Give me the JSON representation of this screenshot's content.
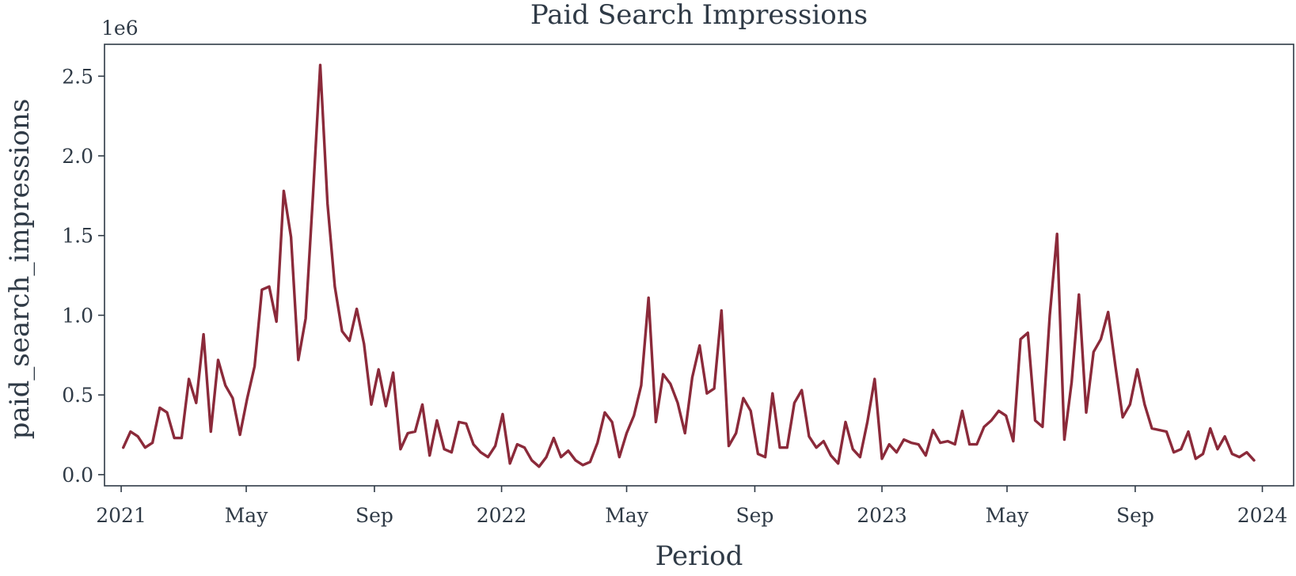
{
  "chart_data": {
    "type": "line",
    "title": "Paid Search Impressions",
    "xlabel": "Period",
    "ylabel": "paid_search_impressions",
    "y_offset_label": "1e6",
    "y_multiplier": 1000000,
    "ylim": [
      -0.07,
      2.7
    ],
    "xlim": [
      "2020-12-16",
      "2024-01-31"
    ],
    "grid": false,
    "line_color": "#8b2a3a",
    "y_ticks": [
      {
        "value": 0.0,
        "label": "0.0"
      },
      {
        "value": 0.5,
        "label": "0.5"
      },
      {
        "value": 1.0,
        "label": "1.0"
      },
      {
        "value": 1.5,
        "label": "1.5"
      },
      {
        "value": 2.0,
        "label": "2.0"
      },
      {
        "value": 2.5,
        "label": "2.5"
      }
    ],
    "x_ticks": [
      {
        "date": "2021-01-01",
        "label": "2021"
      },
      {
        "date": "2021-05-01",
        "label": "May"
      },
      {
        "date": "2021-09-01",
        "label": "Sep"
      },
      {
        "date": "2022-01-01",
        "label": "2022"
      },
      {
        "date": "2022-05-01",
        "label": "May"
      },
      {
        "date": "2022-09-01",
        "label": "Sep"
      },
      {
        "date": "2023-01-01",
        "label": "2023"
      },
      {
        "date": "2023-05-01",
        "label": "May"
      },
      {
        "date": "2023-09-01",
        "label": "Sep"
      },
      {
        "date": "2024-01-01",
        "label": "2024"
      }
    ],
    "series": [
      {
        "x": [
          "2021-01-03",
          "2021-01-10",
          "2021-01-17",
          "2021-01-24",
          "2021-01-31",
          "2021-02-07",
          "2021-02-14",
          "2021-02-21",
          "2021-02-28",
          "2021-03-07",
          "2021-03-14",
          "2021-03-21",
          "2021-03-28",
          "2021-04-04",
          "2021-04-11",
          "2021-04-18",
          "2021-04-25",
          "2021-05-02",
          "2021-05-09",
          "2021-05-16",
          "2021-05-23",
          "2021-05-30",
          "2021-06-06",
          "2021-06-13",
          "2021-06-20",
          "2021-06-27",
          "2021-07-04",
          "2021-07-11",
          "2021-07-18",
          "2021-07-25",
          "2021-08-01",
          "2021-08-08",
          "2021-08-15",
          "2021-08-22",
          "2021-08-29",
          "2021-09-05",
          "2021-09-12",
          "2021-09-19",
          "2021-09-26",
          "2021-10-03",
          "2021-10-10",
          "2021-10-17",
          "2021-10-24",
          "2021-10-31",
          "2021-11-07",
          "2021-11-14",
          "2021-11-21",
          "2021-11-28",
          "2021-12-05",
          "2021-12-12",
          "2021-12-19",
          "2021-12-26",
          "2022-01-02",
          "2022-01-09",
          "2022-01-16",
          "2022-01-23",
          "2022-01-30",
          "2022-02-06",
          "2022-02-13",
          "2022-02-20",
          "2022-02-27",
          "2022-03-06",
          "2022-03-13",
          "2022-03-20",
          "2022-03-27",
          "2022-04-03",
          "2022-04-10",
          "2022-04-17",
          "2022-04-24",
          "2022-05-01",
          "2022-05-08",
          "2022-05-15",
          "2022-05-22",
          "2022-05-29",
          "2022-06-05",
          "2022-06-12",
          "2022-06-19",
          "2022-06-26",
          "2022-07-03",
          "2022-07-10",
          "2022-07-17",
          "2022-07-24",
          "2022-07-31",
          "2022-08-07",
          "2022-08-14",
          "2022-08-21",
          "2022-08-28",
          "2022-09-04",
          "2022-09-11",
          "2022-09-18",
          "2022-09-25",
          "2022-10-02",
          "2022-10-09",
          "2022-10-16",
          "2022-10-23",
          "2022-10-30",
          "2022-11-06",
          "2022-11-13",
          "2022-11-20",
          "2022-11-27",
          "2022-12-04",
          "2022-12-11",
          "2022-12-18",
          "2022-12-25",
          "2023-01-01",
          "2023-01-08",
          "2023-01-15",
          "2023-01-22",
          "2023-01-29",
          "2023-02-05",
          "2023-02-12",
          "2023-02-19",
          "2023-02-26",
          "2023-03-05",
          "2023-03-12",
          "2023-03-19",
          "2023-03-26",
          "2023-04-02",
          "2023-04-09",
          "2023-04-16",
          "2023-04-23",
          "2023-04-30",
          "2023-05-07",
          "2023-05-14",
          "2023-05-21",
          "2023-05-28",
          "2023-06-04",
          "2023-06-11",
          "2023-06-18",
          "2023-06-25",
          "2023-07-02",
          "2023-07-09",
          "2023-07-16",
          "2023-07-23",
          "2023-07-30",
          "2023-08-06",
          "2023-08-13",
          "2023-08-20",
          "2023-08-27",
          "2023-09-03",
          "2023-09-10",
          "2023-09-17",
          "2023-09-24",
          "2023-10-01",
          "2023-10-08",
          "2023-10-15",
          "2023-10-22",
          "2023-10-29",
          "2023-11-05",
          "2023-11-12",
          "2023-11-19",
          "2023-11-26",
          "2023-12-03",
          "2023-12-10",
          "2023-12-17",
          "2023-12-24"
        ],
        "values": [
          0.17,
          0.27,
          0.24,
          0.17,
          0.2,
          0.42,
          0.39,
          0.23,
          0.23,
          0.6,
          0.45,
          0.88,
          0.27,
          0.72,
          0.56,
          0.48,
          0.25,
          0.48,
          0.68,
          1.16,
          1.18,
          0.96,
          1.78,
          1.49,
          0.72,
          0.98,
          1.75,
          2.57,
          1.7,
          1.18,
          0.9,
          0.84,
          1.04,
          0.82,
          0.44,
          0.66,
          0.43,
          0.64,
          0.16,
          0.26,
          0.27,
          0.44,
          0.12,
          0.34,
          0.16,
          0.14,
          0.33,
          0.32,
          0.19,
          0.14,
          0.11,
          0.18,
          0.38,
          0.07,
          0.19,
          0.17,
          0.09,
          0.05,
          0.11,
          0.23,
          0.11,
          0.15,
          0.09,
          0.06,
          0.08,
          0.2,
          0.39,
          0.33,
          0.11,
          0.26,
          0.37,
          0.56,
          1.11,
          0.33,
          0.63,
          0.57,
          0.45,
          0.26,
          0.61,
          0.81,
          0.51,
          0.54,
          1.03,
          0.18,
          0.26,
          0.48,
          0.4,
          0.13,
          0.11,
          0.51,
          0.17,
          0.17,
          0.45,
          0.53,
          0.24,
          0.17,
          0.21,
          0.12,
          0.07,
          0.33,
          0.16,
          0.11,
          0.33,
          0.6,
          0.1,
          0.19,
          0.14,
          0.22,
          0.2,
          0.19,
          0.12,
          0.28,
          0.2,
          0.21,
          0.19,
          0.4,
          0.19,
          0.19,
          0.3,
          0.34,
          0.4,
          0.37,
          0.21,
          0.85,
          0.89,
          0.34,
          0.3,
          1.0,
          1.51,
          0.22,
          0.58,
          1.13,
          0.39,
          0.77,
          0.85,
          1.02,
          0.68,
          0.36,
          0.44,
          0.66,
          0.44,
          0.29,
          0.28,
          0.27,
          0.14,
          0.16,
          0.27,
          0.1,
          0.13,
          0.29,
          0.16,
          0.24,
          0.13,
          0.11,
          0.14,
          0.09
        ]
      }
    ]
  }
}
